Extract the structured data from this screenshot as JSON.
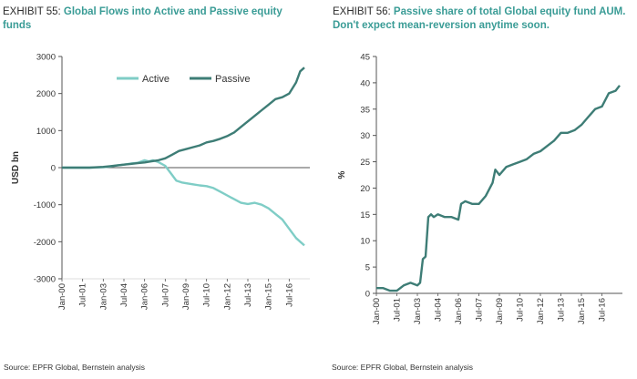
{
  "left": {
    "exhibit_number": "EXHIBIT 55:",
    "title": "Global Flows into Active and Passive equity funds",
    "source": "Source: EPFR Global, Bernstein analysis"
  },
  "right": {
    "exhibit_number": "EXHIBIT 56:",
    "title": "Passive share of total Global equity fund AUM. Don't expect mean-reversion anytime soon.",
    "source": "Source: EPFR Global, Bernstein analysis"
  },
  "colors": {
    "active": "#7fcdc6",
    "passive": "#3e7d76",
    "axis": "#555555",
    "title_accent": "#3a9c96"
  },
  "chart_data": [
    {
      "type": "line",
      "title": "Global Flows into Active and Passive equity funds",
      "ylabel": "USD bn",
      "xlabel": "",
      "ylim": [
        -3000,
        3000
      ],
      "yticks": [
        3000,
        2000,
        1000,
        0,
        -1000,
        -2000,
        -3000
      ],
      "xlim": [
        2000.0,
        2018.0
      ],
      "tick_labels": [
        "Jan-00",
        "Jul-01",
        "Jan-03",
        "Jul-04",
        "Jan-06",
        "Jul-07",
        "Jan-09",
        "Jul-10",
        "Jan-12",
        "Jul-13",
        "Jan-15",
        "Jul-16"
      ],
      "tick_positions": [
        2000.0,
        2001.5,
        2003.0,
        2004.5,
        2006.0,
        2007.5,
        2009.0,
        2010.5,
        2012.0,
        2013.5,
        2015.0,
        2016.5
      ],
      "legend_position": "top",
      "series": [
        {
          "name": "Active",
          "x": [
            2000.0,
            2001.0,
            2002.0,
            2003.0,
            2003.5,
            2004.0,
            2004.5,
            2005.0,
            2005.5,
            2006.0,
            2006.3,
            2006.6,
            2007.0,
            2007.5,
            2008.0,
            2008.3,
            2008.7,
            2009.0,
            2009.5,
            2010.0,
            2010.5,
            2011.0,
            2011.5,
            2012.0,
            2012.5,
            2013.0,
            2013.5,
            2014.0,
            2014.5,
            2015.0,
            2015.5,
            2016.0,
            2016.5,
            2017.0,
            2017.3,
            2017.6
          ],
          "values": [
            0,
            0,
            0,
            10,
            30,
            60,
            80,
            110,
            130,
            200,
            170,
            200,
            150,
            50,
            -200,
            -350,
            -400,
            -420,
            -450,
            -480,
            -500,
            -550,
            -650,
            -750,
            -850,
            -950,
            -980,
            -950,
            -1000,
            -1100,
            -1250,
            -1400,
            -1650,
            -1900,
            -2000,
            -2100
          ]
        },
        {
          "name": "Passive",
          "x": [
            2000.0,
            2001.0,
            2002.0,
            2003.0,
            2003.5,
            2004.0,
            2004.5,
            2005.0,
            2005.5,
            2006.0,
            2006.5,
            2007.0,
            2007.5,
            2008.0,
            2008.5,
            2009.0,
            2009.5,
            2010.0,
            2010.5,
            2011.0,
            2011.5,
            2012.0,
            2012.5,
            2013.0,
            2013.5,
            2014.0,
            2014.5,
            2015.0,
            2015.5,
            2016.0,
            2016.5,
            2017.0,
            2017.3,
            2017.6
          ],
          "values": [
            0,
            0,
            0,
            20,
            40,
            60,
            80,
            100,
            120,
            140,
            170,
            200,
            250,
            350,
            450,
            500,
            550,
            600,
            680,
            720,
            780,
            850,
            950,
            1100,
            1250,
            1400,
            1550,
            1700,
            1850,
            1900,
            2000,
            2300,
            2600,
            2700
          ]
        }
      ]
    },
    {
      "type": "line",
      "title": "Passive share of total Global equity fund AUM. Don't expect mean-reversion anytime soon.",
      "ylabel": "%",
      "xlabel": "",
      "ylim": [
        0,
        45
      ],
      "yticks": [
        0,
        5,
        10,
        15,
        20,
        25,
        30,
        35,
        40,
        45
      ],
      "xlim": [
        2000.0,
        2018.0
      ],
      "tick_labels": [
        "Jan-00",
        "Jul-01",
        "Jan-03",
        "Jul-04",
        "Jan-06",
        "Jul-07",
        "Jan-09",
        "Jul-10",
        "Jan-12",
        "Jul-13",
        "Jan-15",
        "Jul-16"
      ],
      "tick_positions": [
        2000.0,
        2001.5,
        2003.0,
        2004.5,
        2006.0,
        2007.5,
        2009.0,
        2010.5,
        2012.0,
        2013.5,
        2015.0,
        2016.5
      ],
      "series": [
        {
          "name": "",
          "x": [
            2000.0,
            2000.5,
            2001.0,
            2001.5,
            2002.0,
            2002.5,
            2003.0,
            2003.2,
            2003.4,
            2003.6,
            2003.8,
            2004.0,
            2004.2,
            2004.5,
            2005.0,
            2005.5,
            2006.0,
            2006.2,
            2006.5,
            2007.0,
            2007.5,
            2008.0,
            2008.5,
            2008.7,
            2009.0,
            2009.5,
            2010.0,
            2010.5,
            2011.0,
            2011.5,
            2012.0,
            2012.5,
            2013.0,
            2013.5,
            2014.0,
            2014.5,
            2015.0,
            2015.5,
            2016.0,
            2016.5,
            2017.0,
            2017.5,
            2017.8
          ],
          "values": [
            1,
            1,
            0.5,
            0.5,
            1.5,
            2,
            1.5,
            2,
            6.5,
            7,
            14.5,
            15,
            14.5,
            15,
            14.5,
            14.5,
            14,
            17,
            17.5,
            17,
            17,
            18.5,
            21,
            23.5,
            22.5,
            24,
            24.5,
            25,
            25.5,
            26.5,
            27,
            28,
            29,
            30.5,
            30.5,
            31,
            32,
            33.5,
            35,
            35.5,
            38,
            38.5,
            39.5
          ]
        }
      ]
    }
  ]
}
